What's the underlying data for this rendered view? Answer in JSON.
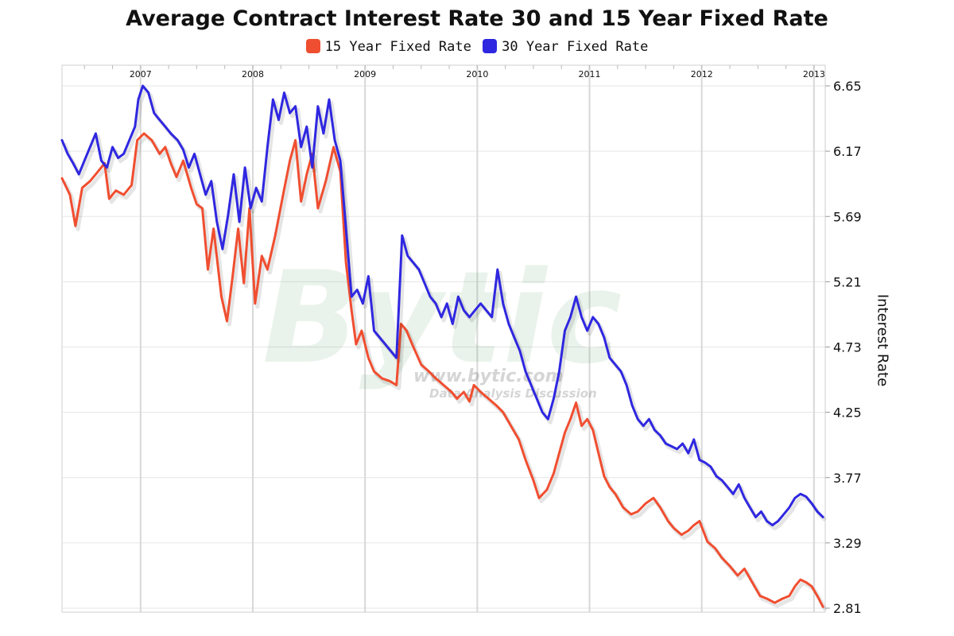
{
  "chart_data": {
    "type": "line",
    "title": "Average Contract Interest Rate 30 and 15 Year Fixed Rate",
    "ylabel": "Interest Rate",
    "xlabel": "",
    "ylim": [
      2.81,
      6.65
    ],
    "yticks": [
      "6.65",
      "6.17",
      "5.69",
      "5.21",
      "4.73",
      "4.25",
      "3.77",
      "3.29",
      "2.81"
    ],
    "xlim": [
      2006.3,
      2013.1
    ],
    "year_labels": [
      {
        "year": 2007,
        "label": "2007"
      },
      {
        "year": 2008,
        "label": "2008"
      },
      {
        "year": 2009,
        "label": "2009"
      },
      {
        "year": 2010,
        "label": "2010"
      },
      {
        "year": 2011,
        "label": "2011"
      },
      {
        "year": 2012,
        "label": "2012"
      },
      {
        "year": 2013,
        "label": "2013"
      }
    ],
    "grid": true,
    "legend_position": "top-center",
    "watermark": {
      "text": "Bytic",
      "sub1": "www.bytic.com",
      "sub2": "Data Analysis Discussion"
    },
    "series": [
      {
        "name": "15 Year Fixed Rate",
        "color": "#f04e30",
        "points": [
          [
            2006.3,
            5.97
          ],
          [
            2006.37,
            5.85
          ],
          [
            2006.42,
            5.62
          ],
          [
            2006.48,
            5.9
          ],
          [
            2006.55,
            5.95
          ],
          [
            2006.62,
            6.02
          ],
          [
            2006.68,
            6.08
          ],
          [
            2006.72,
            5.82
          ],
          [
            2006.78,
            5.88
          ],
          [
            2006.85,
            5.85
          ],
          [
            2006.92,
            5.92
          ],
          [
            2006.97,
            6.25
          ],
          [
            2007.03,
            6.3
          ],
          [
            2007.1,
            6.25
          ],
          [
            2007.17,
            6.15
          ],
          [
            2007.22,
            6.2
          ],
          [
            2007.27,
            6.08
          ],
          [
            2007.32,
            5.98
          ],
          [
            2007.38,
            6.1
          ],
          [
            2007.45,
            5.9
          ],
          [
            2007.5,
            5.78
          ],
          [
            2007.55,
            5.75
          ],
          [
            2007.6,
            5.3
          ],
          [
            2007.65,
            5.6
          ],
          [
            2007.72,
            5.1
          ],
          [
            2007.77,
            4.92
          ],
          [
            2007.82,
            5.25
          ],
          [
            2007.87,
            5.6
          ],
          [
            2007.92,
            5.2
          ],
          [
            2007.97,
            5.75
          ],
          [
            2008.02,
            5.05
          ],
          [
            2008.08,
            5.4
          ],
          [
            2008.13,
            5.3
          ],
          [
            2008.2,
            5.55
          ],
          [
            2008.27,
            5.85
          ],
          [
            2008.33,
            6.1
          ],
          [
            2008.38,
            6.25
          ],
          [
            2008.43,
            5.8
          ],
          [
            2008.48,
            6.0
          ],
          [
            2008.53,
            6.15
          ],
          [
            2008.58,
            5.75
          ],
          [
            2008.65,
            5.95
          ],
          [
            2008.72,
            6.2
          ],
          [
            2008.78,
            6.02
          ],
          [
            2008.83,
            5.35
          ],
          [
            2008.88,
            5.0
          ],
          [
            2008.92,
            4.75
          ],
          [
            2008.97,
            4.85
          ],
          [
            2009.03,
            4.65
          ],
          [
            2009.08,
            4.55
          ],
          [
            2009.15,
            4.5
          ],
          [
            2009.22,
            4.48
          ],
          [
            2009.28,
            4.45
          ],
          [
            2009.32,
            4.9
          ],
          [
            2009.37,
            4.85
          ],
          [
            2009.42,
            4.75
          ],
          [
            2009.5,
            4.6
          ],
          [
            2009.57,
            4.55
          ],
          [
            2009.63,
            4.5
          ],
          [
            2009.7,
            4.45
          ],
          [
            2009.77,
            4.4
          ],
          [
            2009.82,
            4.35
          ],
          [
            2009.88,
            4.4
          ],
          [
            2009.93,
            4.33
          ],
          [
            2009.97,
            4.45
          ],
          [
            2010.03,
            4.4
          ],
          [
            2010.1,
            4.35
          ],
          [
            2010.17,
            4.3
          ],
          [
            2010.23,
            4.25
          ],
          [
            2010.3,
            4.15
          ],
          [
            2010.37,
            4.05
          ],
          [
            2010.43,
            3.9
          ],
          [
            2010.5,
            3.75
          ],
          [
            2010.55,
            3.62
          ],
          [
            2010.62,
            3.68
          ],
          [
            2010.68,
            3.8
          ],
          [
            2010.73,
            3.95
          ],
          [
            2010.78,
            4.1
          ],
          [
            2010.83,
            4.2
          ],
          [
            2010.88,
            4.32
          ],
          [
            2010.93,
            4.15
          ],
          [
            2010.98,
            4.2
          ],
          [
            2011.03,
            4.12
          ],
          [
            2011.08,
            3.95
          ],
          [
            2011.13,
            3.78
          ],
          [
            2011.18,
            3.7
          ],
          [
            2011.23,
            3.65
          ],
          [
            2011.3,
            3.55
          ],
          [
            2011.37,
            3.5
          ],
          [
            2011.43,
            3.52
          ],
          [
            2011.5,
            3.58
          ],
          [
            2011.57,
            3.62
          ],
          [
            2011.63,
            3.55
          ],
          [
            2011.7,
            3.45
          ],
          [
            2011.75,
            3.4
          ],
          [
            2011.82,
            3.35
          ],
          [
            2011.88,
            3.38
          ],
          [
            2011.93,
            3.42
          ],
          [
            2011.98,
            3.45
          ],
          [
            2012.05,
            3.3
          ],
          [
            2012.12,
            3.25
          ],
          [
            2012.18,
            3.18
          ],
          [
            2012.25,
            3.12
          ],
          [
            2012.32,
            3.05
          ],
          [
            2012.38,
            3.1
          ],
          [
            2012.45,
            3.0
          ],
          [
            2012.52,
            2.9
          ],
          [
            2012.58,
            2.88
          ],
          [
            2012.65,
            2.85
          ],
          [
            2012.72,
            2.88
          ],
          [
            2012.78,
            2.9
          ],
          [
            2012.83,
            2.97
          ],
          [
            2012.88,
            3.02
          ],
          [
            2012.93,
            3.0
          ],
          [
            2012.98,
            2.97
          ],
          [
            2013.03,
            2.9
          ],
          [
            2013.08,
            2.82
          ]
        ]
      },
      {
        "name": "30 Year Fixed Rate",
        "color": "#2f27e0",
        "points": [
          [
            2006.3,
            6.25
          ],
          [
            2006.35,
            6.15
          ],
          [
            2006.4,
            6.08
          ],
          [
            2006.45,
            6.0
          ],
          [
            2006.5,
            6.1
          ],
          [
            2006.55,
            6.2
          ],
          [
            2006.6,
            6.3
          ],
          [
            2006.65,
            6.1
          ],
          [
            2006.7,
            6.05
          ],
          [
            2006.75,
            6.2
          ],
          [
            2006.8,
            6.12
          ],
          [
            2006.85,
            6.15
          ],
          [
            2006.9,
            6.25
          ],
          [
            2006.95,
            6.35
          ],
          [
            2006.98,
            6.55
          ],
          [
            2007.02,
            6.65
          ],
          [
            2007.07,
            6.6
          ],
          [
            2007.12,
            6.45
          ],
          [
            2007.17,
            6.4
          ],
          [
            2007.22,
            6.35
          ],
          [
            2007.27,
            6.3
          ],
          [
            2007.33,
            6.25
          ],
          [
            2007.38,
            6.18
          ],
          [
            2007.43,
            6.05
          ],
          [
            2007.48,
            6.15
          ],
          [
            2007.53,
            6.0
          ],
          [
            2007.58,
            5.85
          ],
          [
            2007.63,
            5.95
          ],
          [
            2007.68,
            5.65
          ],
          [
            2007.73,
            5.45
          ],
          [
            2007.78,
            5.7
          ],
          [
            2007.83,
            6.0
          ],
          [
            2007.88,
            5.65
          ],
          [
            2007.93,
            6.05
          ],
          [
            2007.98,
            5.75
          ],
          [
            2008.03,
            5.9
          ],
          [
            2008.08,
            5.8
          ],
          [
            2008.13,
            6.2
          ],
          [
            2008.18,
            6.55
          ],
          [
            2008.23,
            6.4
          ],
          [
            2008.28,
            6.6
          ],
          [
            2008.33,
            6.45
          ],
          [
            2008.38,
            6.5
          ],
          [
            2008.43,
            6.2
          ],
          [
            2008.48,
            6.35
          ],
          [
            2008.53,
            6.05
          ],
          [
            2008.58,
            6.5
          ],
          [
            2008.63,
            6.3
          ],
          [
            2008.68,
            6.55
          ],
          [
            2008.73,
            6.25
          ],
          [
            2008.78,
            6.1
          ],
          [
            2008.83,
            5.6
          ],
          [
            2008.88,
            5.1
          ],
          [
            2008.93,
            5.15
          ],
          [
            2008.98,
            5.05
          ],
          [
            2009.03,
            5.25
          ],
          [
            2009.08,
            4.85
          ],
          [
            2009.13,
            4.8
          ],
          [
            2009.18,
            4.75
          ],
          [
            2009.23,
            4.7
          ],
          [
            2009.28,
            4.65
          ],
          [
            2009.33,
            5.55
          ],
          [
            2009.38,
            5.4
          ],
          [
            2009.43,
            5.35
          ],
          [
            2009.48,
            5.3
          ],
          [
            2009.53,
            5.2
          ],
          [
            2009.58,
            5.1
          ],
          [
            2009.63,
            5.05
          ],
          [
            2009.68,
            4.95
          ],
          [
            2009.73,
            5.05
          ],
          [
            2009.78,
            4.9
          ],
          [
            2009.83,
            5.1
          ],
          [
            2009.88,
            5.0
          ],
          [
            2009.93,
            4.95
          ],
          [
            2009.98,
            5.0
          ],
          [
            2010.03,
            5.05
          ],
          [
            2010.08,
            5.0
          ],
          [
            2010.13,
            4.95
          ],
          [
            2010.18,
            5.3
          ],
          [
            2010.23,
            5.05
          ],
          [
            2010.28,
            4.9
          ],
          [
            2010.33,
            4.8
          ],
          [
            2010.38,
            4.7
          ],
          [
            2010.43,
            4.55
          ],
          [
            2010.48,
            4.45
          ],
          [
            2010.53,
            4.35
          ],
          [
            2010.58,
            4.25
          ],
          [
            2010.63,
            4.2
          ],
          [
            2010.68,
            4.35
          ],
          [
            2010.73,
            4.55
          ],
          [
            2010.78,
            4.85
          ],
          [
            2010.83,
            4.95
          ],
          [
            2010.88,
            5.1
          ],
          [
            2010.93,
            4.95
          ],
          [
            2010.98,
            4.85
          ],
          [
            2011.03,
            4.95
          ],
          [
            2011.08,
            4.9
          ],
          [
            2011.13,
            4.8
          ],
          [
            2011.18,
            4.65
          ],
          [
            2011.23,
            4.6
          ],
          [
            2011.28,
            4.55
          ],
          [
            2011.33,
            4.45
          ],
          [
            2011.38,
            4.3
          ],
          [
            2011.43,
            4.2
          ],
          [
            2011.48,
            4.15
          ],
          [
            2011.53,
            4.2
          ],
          [
            2011.58,
            4.12
          ],
          [
            2011.63,
            4.08
          ],
          [
            2011.68,
            4.02
          ],
          [
            2011.73,
            4.0
          ],
          [
            2011.78,
            3.98
          ],
          [
            2011.83,
            4.02
          ],
          [
            2011.88,
            3.95
          ],
          [
            2011.93,
            4.05
          ],
          [
            2011.98,
            3.9
          ],
          [
            2012.03,
            3.88
          ],
          [
            2012.08,
            3.85
          ],
          [
            2012.13,
            3.78
          ],
          [
            2012.18,
            3.75
          ],
          [
            2012.23,
            3.7
          ],
          [
            2012.28,
            3.65
          ],
          [
            2012.33,
            3.72
          ],
          [
            2012.38,
            3.62
          ],
          [
            2012.43,
            3.55
          ],
          [
            2012.48,
            3.48
          ],
          [
            2012.53,
            3.52
          ],
          [
            2012.58,
            3.45
          ],
          [
            2012.63,
            3.42
          ],
          [
            2012.68,
            3.45
          ],
          [
            2012.73,
            3.5
          ],
          [
            2012.78,
            3.55
          ],
          [
            2012.83,
            3.62
          ],
          [
            2012.88,
            3.65
          ],
          [
            2012.93,
            3.63
          ],
          [
            2012.98,
            3.58
          ],
          [
            2013.03,
            3.52
          ],
          [
            2013.08,
            3.48
          ]
        ]
      }
    ]
  }
}
